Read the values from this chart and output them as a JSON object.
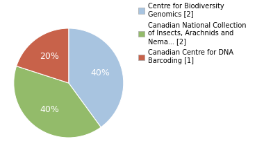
{
  "slices": [
    {
      "label": "Centre for Biodiversity\nGenomics [2]",
      "value": 40,
      "color": "#a8c4e0",
      "pct_label": "40%"
    },
    {
      "label": "Canadian National Collection\nof Insects, Arachnids and\nNema... [2]",
      "value": 40,
      "color": "#93bb6a",
      "pct_label": "40%"
    },
    {
      "label": "Canadian Centre for DNA\nBarcoding [1]",
      "value": 20,
      "color": "#c8624a",
      "pct_label": "20%"
    }
  ],
  "startangle": 90,
  "text_color": "#ffffff",
  "legend_fontsize": 7.0,
  "pct_fontsize": 9,
  "background_color": "#ffffff"
}
